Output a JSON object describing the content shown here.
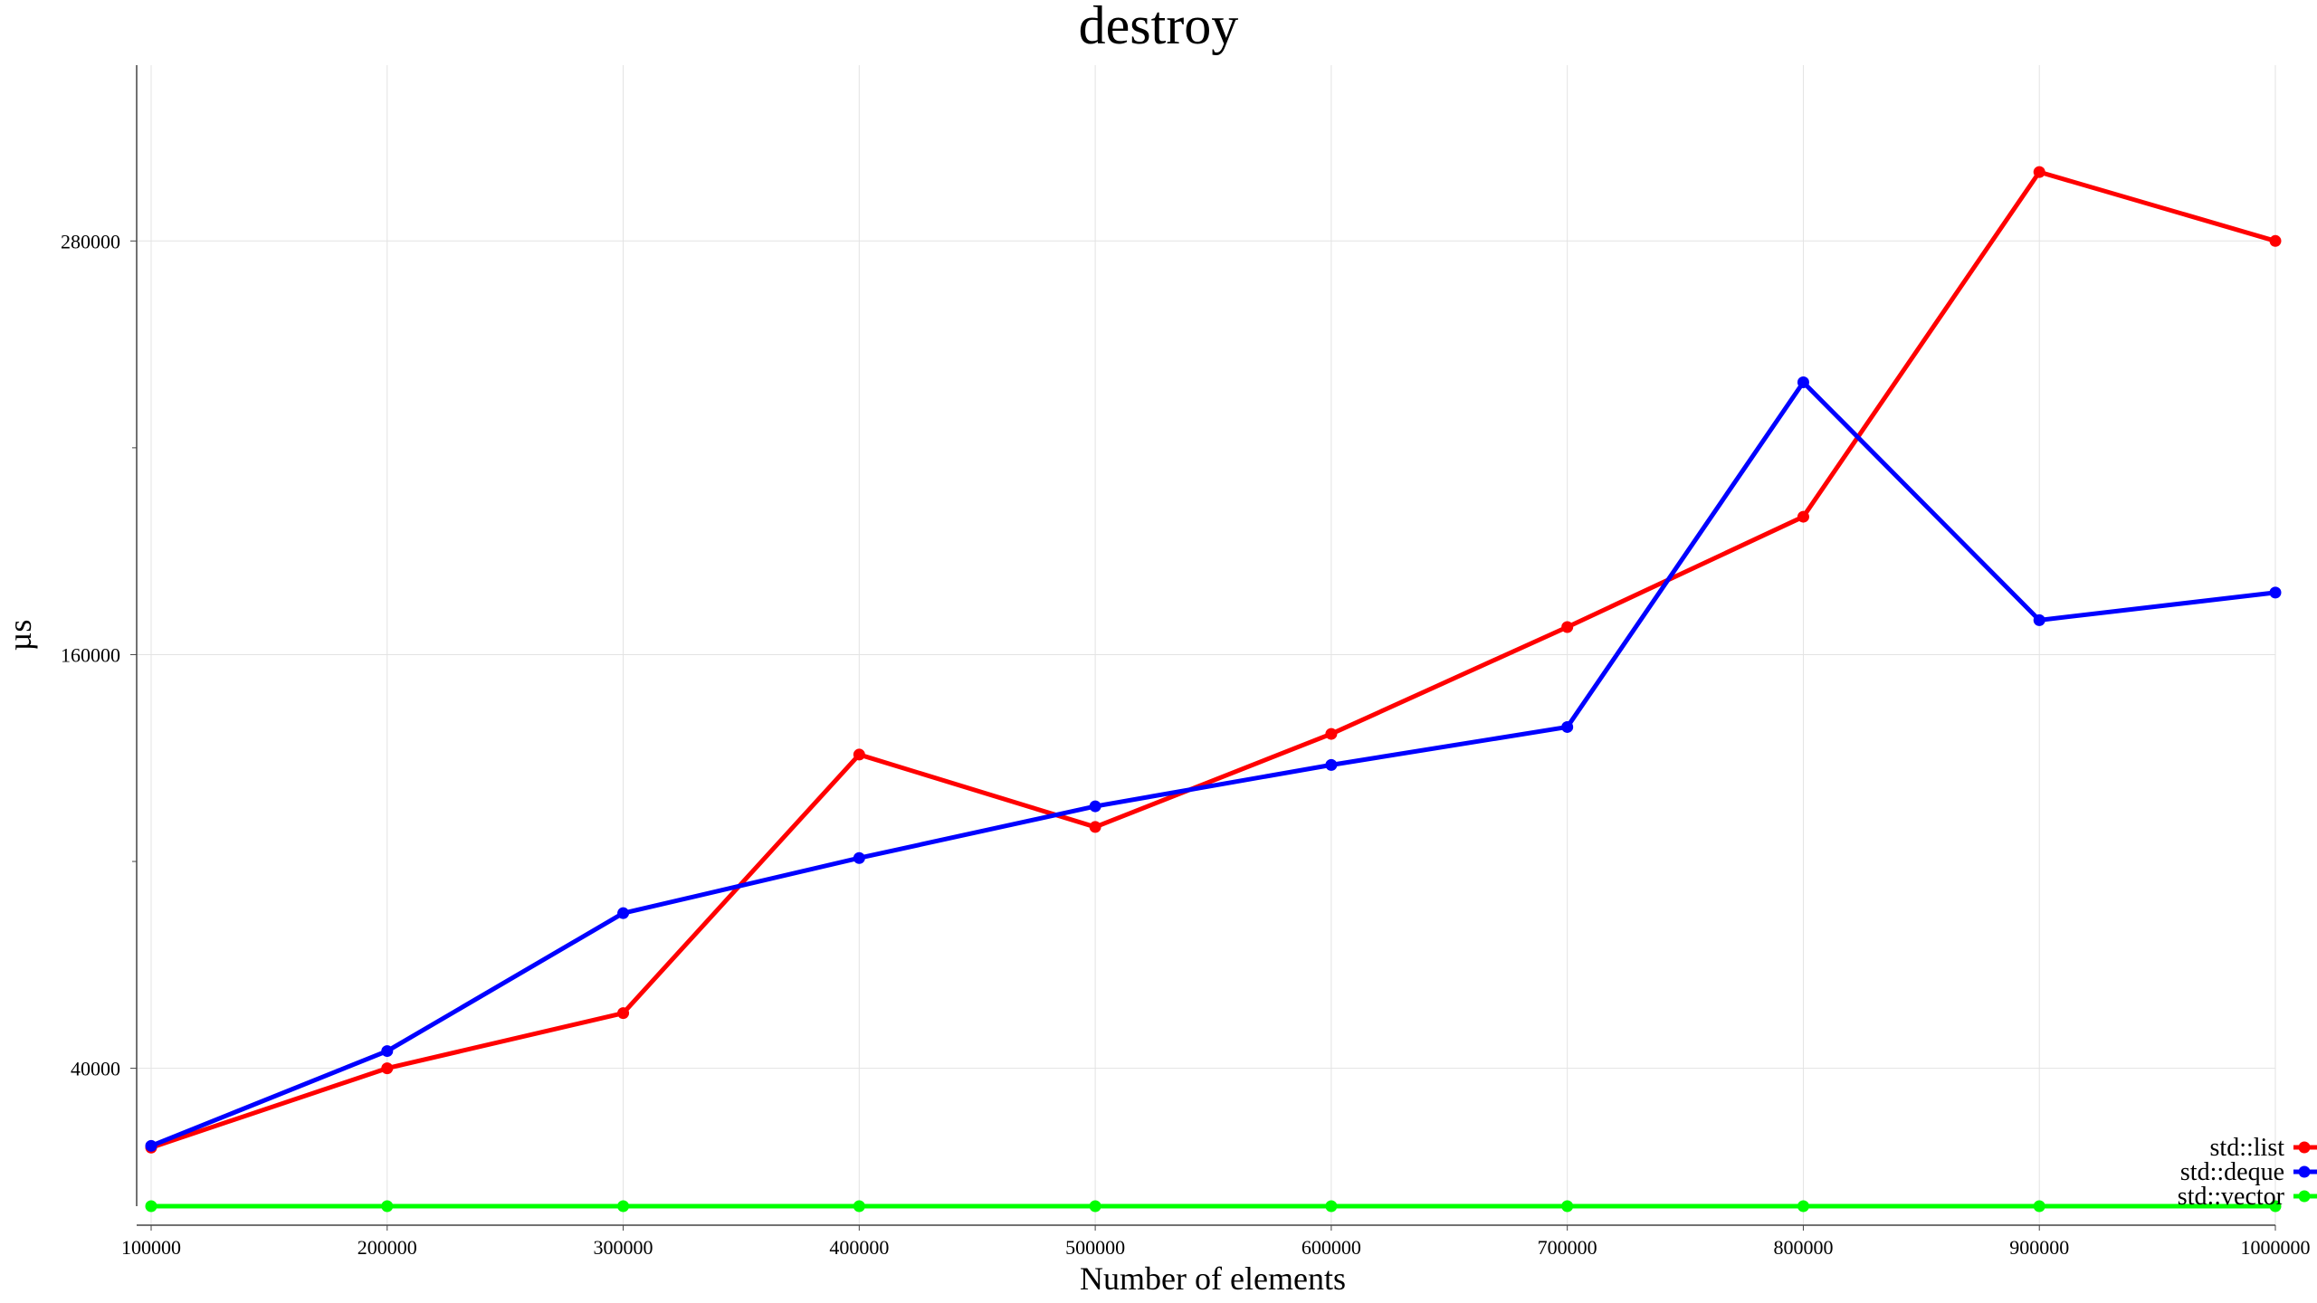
{
  "chart_data": {
    "type": "line",
    "title": "destroy",
    "xlabel": "Number of elements",
    "ylabel": "µs",
    "x": [
      100000,
      200000,
      300000,
      400000,
      500000,
      600000,
      700000,
      800000,
      900000,
      1000000
    ],
    "xlim": [
      100000,
      1000000
    ],
    "ylim": [
      0,
      331000
    ],
    "yticks": [
      40000,
      160000,
      280000
    ],
    "y_minor_ticks": [
      100000,
      220000
    ],
    "grid": true,
    "legend_position": "bottom-right",
    "series": [
      {
        "name": "std::list",
        "color": "#ff0000",
        "values": [
          17000,
          40000,
          56000,
          131000,
          110000,
          137000,
          168000,
          200000,
          300000,
          280000
        ]
      },
      {
        "name": "std::deque",
        "color": "#0000ff",
        "values": [
          17500,
          45000,
          85000,
          101000,
          116000,
          128000,
          139000,
          239000,
          170000,
          178000
        ]
      },
      {
        "name": "std::vector",
        "color": "#00ff00",
        "values": [
          0,
          0,
          0,
          0,
          0,
          0,
          0,
          0,
          0,
          0
        ]
      }
    ]
  }
}
